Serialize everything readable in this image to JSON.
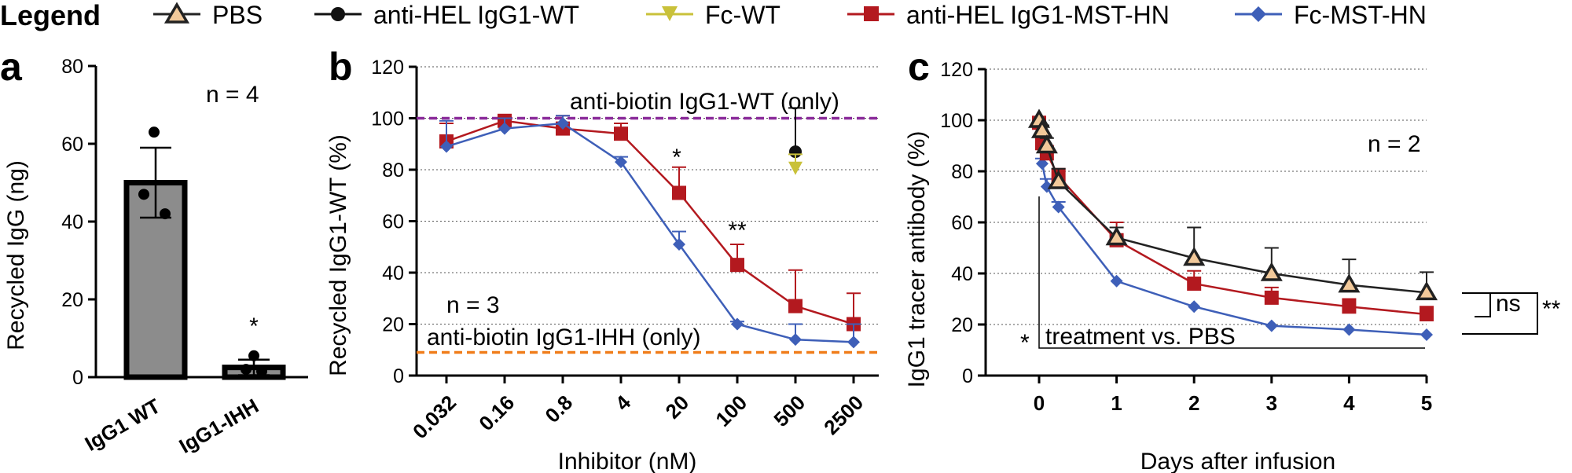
{
  "legend": {
    "title": "Legend",
    "entries": [
      {
        "label": "PBS",
        "marker": "triangle",
        "color": "#222222",
        "fill": "#f2c99a"
      },
      {
        "label": "anti-HEL IgG1-WT",
        "marker": "circle",
        "color": "#111111",
        "fill": "#111111"
      },
      {
        "label": "Fc-WT",
        "marker": "triangle-down",
        "color": "#c9c13a",
        "fill": "#c9c13a"
      },
      {
        "label": "anti-HEL IgG1-MST-HN",
        "marker": "square",
        "color": "#b3191f",
        "fill": "#b3191f"
      },
      {
        "label": "Fc-MST-HN",
        "marker": "diamond",
        "color": "#3e5fb8",
        "fill": "#3e5fb8"
      }
    ]
  },
  "chart_data": [
    {
      "panel": "a",
      "type": "bar",
      "ylabel": "Recycled IgG (ng)",
      "ylim": [
        0,
        80
      ],
      "yticks": [
        "0",
        "20",
        "40",
        "60",
        "80"
      ],
      "categories": [
        "IgG1 WT",
        "IgG1-IHH"
      ],
      "values": [
        50,
        2.5
      ],
      "errors": [
        9,
        2
      ],
      "points": [
        [
          63,
          47,
          42
        ],
        [
          5.5,
          2,
          1.5
        ]
      ],
      "annotations": {
        "n_label": "n = 4",
        "star": "*"
      }
    },
    {
      "panel": "b",
      "type": "line",
      "xlabel": "Inhibitor (nM)",
      "ylabel": "Recycled IgG1-WT (%)",
      "ylim": [
        0,
        120
      ],
      "yticks": [
        "0",
        "20",
        "40",
        "60",
        "80",
        "100",
        "120"
      ],
      "categories": [
        "0.032",
        "0.16",
        "0.8",
        "4",
        "20",
        "100",
        "500",
        "2500"
      ],
      "series": [
        {
          "name": "anti-HEL IgG1-MST-HN",
          "values": [
            91,
            99,
            96,
            94,
            71,
            43,
            27,
            20
          ],
          "errors": [
            7,
            2,
            5,
            4,
            10,
            8,
            14,
            12
          ]
        },
        {
          "name": "Fc-MST-HN",
          "values": [
            89,
            96,
            98,
            83,
            51,
            20,
            14,
            13
          ],
          "errors": [
            10,
            4,
            3,
            2,
            5,
            1,
            6,
            7
          ]
        },
        {
          "name": "anti-HEL IgG1-WT",
          "values": [
            null,
            null,
            null,
            null,
            null,
            null,
            87,
            null
          ],
          "errors": [
            null,
            null,
            null,
            null,
            null,
            null,
            17,
            null
          ]
        },
        {
          "name": "Fc-WT",
          "values": [
            null,
            null,
            null,
            null,
            null,
            null,
            81,
            null
          ],
          "errors": [
            null,
            null,
            null,
            null,
            null,
            null,
            5,
            null
          ]
        }
      ],
      "reference_lines": [
        {
          "label": "anti-biotin IgG1-WT (only)",
          "y": 100,
          "color": "#8a2a9a"
        },
        {
          "label": "anti-biotin IgG1-IHH (only)",
          "y": 9,
          "color": "#f07d1a"
        }
      ],
      "annotations": {
        "n_label": "n = 3",
        "star_20": "*",
        "star_100": "**"
      }
    },
    {
      "panel": "c",
      "type": "line",
      "xlabel": "Days after infusion",
      "ylabel": "IgG1 tracer antibody (%)",
      "ylim": [
        0,
        120
      ],
      "yticks": [
        "0",
        "20",
        "40",
        "60",
        "80",
        "100",
        "120"
      ],
      "xticks": [
        "0",
        "1",
        "2",
        "3",
        "4",
        "5"
      ],
      "series": [
        {
          "name": "PBS",
          "x": [
            0,
            0.04,
            0.1,
            0.25,
            1,
            2,
            3,
            4,
            5
          ],
          "values": [
            100,
            96,
            90,
            76,
            54,
            46,
            40,
            35.5,
            32.5
          ],
          "errors": [
            1,
            2,
            3,
            5,
            4,
            12,
            10,
            10,
            8
          ]
        },
        {
          "name": "anti-HEL IgG1-MST-HN",
          "x": [
            0,
            0.04,
            0.1,
            0.25,
            1,
            2,
            3,
            4,
            5
          ],
          "values": [
            99,
            91,
            87,
            78,
            53,
            36,
            30.5,
            27,
            24
          ],
          "errors": [
            1,
            2,
            3,
            3,
            7,
            5,
            4,
            3,
            3
          ]
        },
        {
          "name": "Fc-MST-HN",
          "x": [
            0,
            0.04,
            0.1,
            0.25,
            1,
            2,
            3,
            4,
            5
          ],
          "values": [
            98,
            83,
            74,
            66,
            37,
            27,
            19.5,
            18,
            16
          ],
          "errors": [
            1,
            2,
            3,
            2,
            1,
            1,
            1,
            1,
            1
          ]
        }
      ],
      "annotations": {
        "n_label": "n = 2",
        "treatment_label": "treatment vs. PBS",
        "treatment_star": "*",
        "bracket_ns": "ns",
        "bracket_outer": "**"
      }
    }
  ]
}
